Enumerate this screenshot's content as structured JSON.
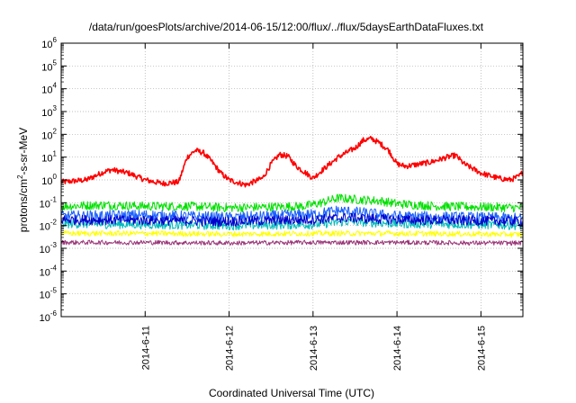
{
  "chart_data": {
    "type": "line",
    "title": "/data/run/goesPlots/archive/2014-06-15/12:00/flux/../flux/5daysEarthDataFluxes.txt",
    "xlabel": "Coordinated Universal Time (UTC)",
    "ylabel_parts": {
      "base": "protons/cm",
      "sup": "2",
      "rest": "-s-sr-MeV"
    },
    "y_scale": "log",
    "ylim_exponents": [
      -6,
      6
    ],
    "y_tick_base": "10",
    "y_ticks": [
      {
        "exp": -6,
        "sup": "-6"
      },
      {
        "exp": -5,
        "sup": "-5"
      },
      {
        "exp": -4,
        "sup": "-4"
      },
      {
        "exp": -3,
        "sup": "-3"
      },
      {
        "exp": -2,
        "sup": "-2"
      },
      {
        "exp": -1,
        "sup": "-1"
      },
      {
        "exp": 0,
        "sup": "0"
      },
      {
        "exp": 1,
        "sup": "1"
      },
      {
        "exp": 2,
        "sup": "2"
      },
      {
        "exp": 3,
        "sup": "3"
      },
      {
        "exp": 4,
        "sup": "4"
      },
      {
        "exp": 5,
        "sup": "5"
      },
      {
        "exp": 6,
        "sup": "6"
      }
    ],
    "x_range_days": [
      0,
      5.5
    ],
    "x_ticks": [
      {
        "day": 1,
        "label": "2014-6-11"
      },
      {
        "day": 2,
        "label": "2014-6-12"
      },
      {
        "day": 3,
        "label": "2014-6-13"
      },
      {
        "day": 4,
        "label": "2014-6-14"
      },
      {
        "day": 5,
        "label": "2014-6-15"
      }
    ],
    "grid": true,
    "series": [
      {
        "color": "#ff0000",
        "width": 1.6,
        "noise": 0.12,
        "x": [
          0,
          0.3,
          0.5,
          0.6,
          0.8,
          1.0,
          1.2,
          1.4,
          1.5,
          1.6,
          1.7,
          1.8,
          1.9,
          2.0,
          2.2,
          2.4,
          2.5,
          2.6,
          2.7,
          2.8,
          3.0,
          3.1,
          3.2,
          3.3,
          3.5,
          3.6,
          3.7,
          3.8,
          3.9,
          4.0,
          4.1,
          4.2,
          4.4,
          4.6,
          4.7,
          4.8,
          5.0,
          5.2,
          5.35,
          5.45,
          5.5
        ],
        "y": [
          0.8,
          1.0,
          2.2,
          2.8,
          2.0,
          1.0,
          0.7,
          0.8,
          10,
          20,
          15,
          6,
          2,
          1.0,
          0.6,
          1.2,
          5,
          13,
          11,
          4,
          1.2,
          2.5,
          5,
          10,
          25,
          55,
          65,
          40,
          20,
          5,
          4,
          4.5,
          6,
          10,
          12,
          5,
          2,
          1.2,
          1.0,
          1.4,
          2.2
        ]
      },
      {
        "color": "#00e000",
        "width": 1.0,
        "noise": 0.2,
        "x": [
          0,
          0.5,
          1.0,
          1.5,
          2.0,
          2.5,
          2.9,
          3.1,
          3.3,
          3.5,
          3.8,
          4.0,
          4.5,
          5.0,
          5.5
        ],
        "y": [
          0.07,
          0.08,
          0.07,
          0.07,
          0.06,
          0.065,
          0.07,
          0.1,
          0.16,
          0.14,
          0.12,
          0.09,
          0.07,
          0.065,
          0.06
        ]
      },
      {
        "color": "#00bbbb",
        "width": 1.0,
        "noise": 0.2,
        "x": [
          0,
          1.0,
          2.0,
          3.0,
          3.4,
          4.0,
          5.0,
          5.5
        ],
        "y": [
          0.012,
          0.011,
          0.01,
          0.011,
          0.015,
          0.012,
          0.011,
          0.01
        ]
      },
      {
        "color": "#1a5fff",
        "width": 1.0,
        "noise": 0.25,
        "x": [
          0,
          1.0,
          2.0,
          3.0,
          3.3,
          3.6,
          4.0,
          5.0,
          5.5
        ],
        "y": [
          0.025,
          0.028,
          0.022,
          0.03,
          0.045,
          0.035,
          0.025,
          0.022,
          0.02
        ]
      },
      {
        "color": "#0000cc",
        "width": 1.0,
        "noise": 0.22,
        "x": [
          0,
          1.0,
          2.0,
          3.0,
          3.4,
          4.0,
          5.0,
          5.5
        ],
        "y": [
          0.018,
          0.017,
          0.015,
          0.018,
          0.022,
          0.018,
          0.016,
          0.015
        ]
      },
      {
        "color": "#ffff00",
        "width": 1.0,
        "noise": 0.12,
        "x": [
          0,
          1.0,
          2.0,
          3.0,
          4.0,
          5.0,
          5.5
        ],
        "y": [
          0.0045,
          0.0045,
          0.0042,
          0.0045,
          0.0045,
          0.0042,
          0.004
        ]
      },
      {
        "color": "#993377",
        "width": 1.0,
        "noise": 0.1,
        "x": [
          0,
          1.0,
          2.0,
          3.0,
          4.0,
          5.0,
          5.5
        ],
        "y": [
          0.0018,
          0.0018,
          0.0017,
          0.0018,
          0.0018,
          0.0017,
          0.0017
        ]
      }
    ]
  }
}
